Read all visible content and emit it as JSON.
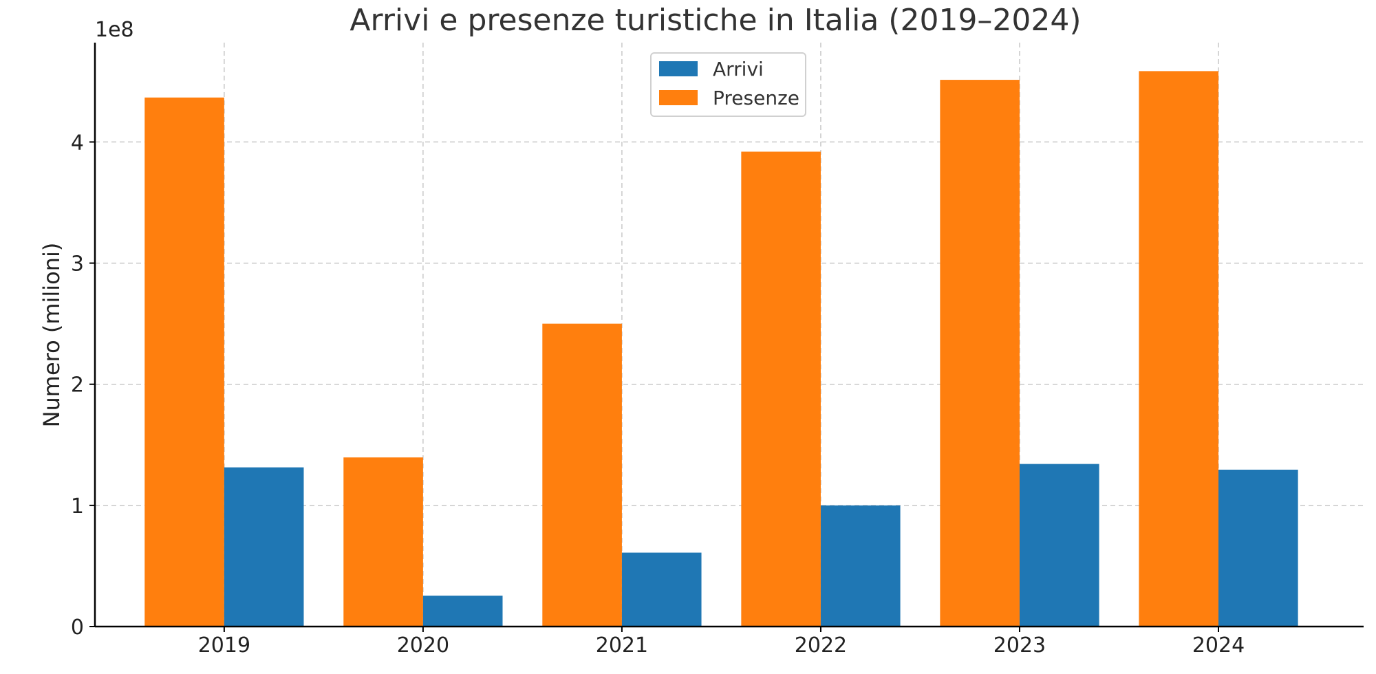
{
  "chart_data": {
    "type": "bar",
    "title": "Arrivi e presenze turistiche in Italia (2019–2024)",
    "xlabel": "",
    "ylabel": "Numero (milioni)",
    "y_offset_label": "1e8",
    "categories": [
      "2019",
      "2020",
      "2021",
      "2022",
      "2023",
      "2024"
    ],
    "series": [
      {
        "name": "Presenze",
        "color": "#ff7f0e",
        "values": [
          436700000,
          139600000,
          250000000,
          392000000,
          451300000,
          458500000
        ]
      },
      {
        "name": "Arrivi",
        "color": "#1f77b4",
        "values": [
          131400000,
          25500000,
          61000000,
          100000000,
          134200000,
          129500000
        ]
      }
    ],
    "legend_order": [
      "Arrivi",
      "Presenze"
    ],
    "legend_position": "top-center",
    "ylim": [
      0,
      482000000
    ],
    "yticks": [
      0,
      100000000,
      200000000,
      300000000,
      400000000
    ],
    "ytick_labels": [
      "0",
      "1",
      "2",
      "3",
      "4"
    ],
    "grid": true
  }
}
